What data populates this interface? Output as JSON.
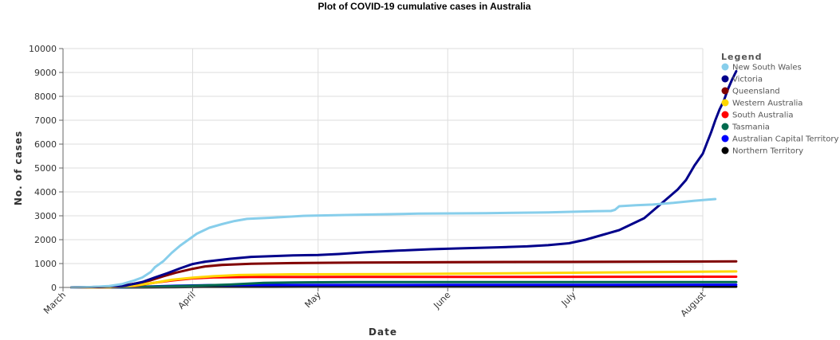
{
  "chart_data": {
    "type": "line",
    "title": "Plot of COVID-19 cumulative cases in Australia",
    "xlabel": "Date",
    "ylabel": "No. of cases",
    "xlim": [
      "2020-03-01",
      "2020-08-01"
    ],
    "ylim": [
      0,
      10000
    ],
    "x_ticks": [
      "March",
      "April",
      "May",
      "June",
      "July",
      "August"
    ],
    "x_tick_dates": [
      "2020-03-01",
      "2020-04-01",
      "2020-05-01",
      "2020-06-01",
      "2020-07-01",
      "2020-08-01"
    ],
    "y_ticks": [
      0,
      1000,
      2000,
      3000,
      4000,
      5000,
      6000,
      7000,
      8000,
      9000,
      10000
    ],
    "grid": true,
    "legend_title": "Legend",
    "legend_position": "right",
    "series": [
      {
        "name": "New South Wales",
        "color": "#87CEEB",
        "points": [
          [
            "2020-03-03",
            5
          ],
          [
            "2020-03-08",
            20
          ],
          [
            "2020-03-12",
            60
          ],
          [
            "2020-03-15",
            135
          ],
          [
            "2020-03-18",
            290
          ],
          [
            "2020-03-20",
            420
          ],
          [
            "2020-03-22",
            650
          ],
          [
            "2020-03-23",
            850
          ],
          [
            "2020-03-25",
            1100
          ],
          [
            "2020-03-27",
            1450
          ],
          [
            "2020-03-29",
            1750
          ],
          [
            "2020-03-31",
            2000
          ],
          [
            "2020-04-02",
            2250
          ],
          [
            "2020-04-05",
            2500
          ],
          [
            "2020-04-08",
            2650
          ],
          [
            "2020-04-11",
            2780
          ],
          [
            "2020-04-14",
            2870
          ],
          [
            "2020-04-20",
            2920
          ],
          [
            "2020-04-28",
            3000
          ],
          [
            "2020-05-10",
            3040
          ],
          [
            "2020-05-25",
            3090
          ],
          [
            "2020-06-10",
            3110
          ],
          [
            "2020-06-25",
            3140
          ],
          [
            "2020-07-06",
            3190
          ],
          [
            "2020-07-10",
            3200
          ],
          [
            "2020-07-11",
            3250
          ],
          [
            "2020-07-12",
            3400
          ],
          [
            "2020-07-16",
            3440
          ],
          [
            "2020-07-20",
            3470
          ],
          [
            "2020-07-25",
            3540
          ],
          [
            "2020-07-30",
            3630
          ],
          [
            "2020-08-04",
            3700
          ]
        ]
      },
      {
        "name": "Victoria",
        "color": "#00008B",
        "points": [
          [
            "2020-03-03",
            5
          ],
          [
            "2020-03-12",
            30
          ],
          [
            "2020-03-16",
            80
          ],
          [
            "2020-03-20",
            230
          ],
          [
            "2020-03-23",
            420
          ],
          [
            "2020-03-26",
            600
          ],
          [
            "2020-03-29",
            800
          ],
          [
            "2020-04-01",
            980
          ],
          [
            "2020-04-04",
            1080
          ],
          [
            "2020-04-10",
            1200
          ],
          [
            "2020-04-15",
            1280
          ],
          [
            "2020-04-25",
            1340
          ],
          [
            "2020-05-01",
            1360
          ],
          [
            "2020-05-06",
            1400
          ],
          [
            "2020-05-12",
            1470
          ],
          [
            "2020-05-20",
            1540
          ],
          [
            "2020-05-28",
            1600
          ],
          [
            "2020-06-05",
            1640
          ],
          [
            "2020-06-13",
            1680
          ],
          [
            "2020-06-20",
            1720
          ],
          [
            "2020-06-25",
            1770
          ],
          [
            "2020-06-30",
            1850
          ],
          [
            "2020-07-04",
            2000
          ],
          [
            "2020-07-08",
            2200
          ],
          [
            "2020-07-12",
            2400
          ],
          [
            "2020-07-15",
            2650
          ],
          [
            "2020-07-18",
            2900
          ],
          [
            "2020-07-20",
            3200
          ],
          [
            "2020-07-22",
            3500
          ],
          [
            "2020-07-24",
            3800
          ],
          [
            "2020-07-26",
            4100
          ],
          [
            "2020-07-28",
            4500
          ],
          [
            "2020-07-30",
            5100
          ],
          [
            "2020-08-01",
            5600
          ],
          [
            "2020-08-02",
            6050
          ],
          [
            "2020-08-03",
            6500
          ],
          [
            "2020-08-04",
            7000
          ],
          [
            "2020-08-05",
            7450
          ],
          [
            "2020-08-06",
            7800
          ],
          [
            "2020-08-07",
            8300
          ],
          [
            "2020-08-08",
            8700
          ],
          [
            "2020-08-09",
            9050
          ]
        ]
      },
      {
        "name": "Queensland",
        "color": "#800000",
        "points": [
          [
            "2020-03-03",
            5
          ],
          [
            "2020-03-10",
            20
          ],
          [
            "2020-03-15",
            70
          ],
          [
            "2020-03-19",
            180
          ],
          [
            "2020-03-22",
            300
          ],
          [
            "2020-03-25",
            470
          ],
          [
            "2020-03-28",
            620
          ],
          [
            "2020-04-01",
            780
          ],
          [
            "2020-04-04",
            880
          ],
          [
            "2020-04-08",
            940
          ],
          [
            "2020-04-15",
            990
          ],
          [
            "2020-04-25",
            1020
          ],
          [
            "2020-05-10",
            1040
          ],
          [
            "2020-06-01",
            1060
          ],
          [
            "2020-07-01",
            1070
          ],
          [
            "2020-08-09",
            1090
          ]
        ]
      },
      {
        "name": "Western Australia",
        "color": "#FFD700",
        "points": [
          [
            "2020-03-03",
            0
          ],
          [
            "2020-03-12",
            10
          ],
          [
            "2020-03-18",
            80
          ],
          [
            "2020-03-23",
            200
          ],
          [
            "2020-03-27",
            320
          ],
          [
            "2020-04-01",
            410
          ],
          [
            "2020-04-06",
            470
          ],
          [
            "2020-04-12",
            520
          ],
          [
            "2020-04-25",
            550
          ],
          [
            "2020-05-20",
            560
          ],
          [
            "2020-06-15",
            590
          ],
          [
            "2020-07-10",
            630
          ],
          [
            "2020-08-09",
            670
          ]
        ]
      },
      {
        "name": "South Australia",
        "color": "#FF0000",
        "points": [
          [
            "2020-03-03",
            0
          ],
          [
            "2020-03-12",
            10
          ],
          [
            "2020-03-18",
            60
          ],
          [
            "2020-03-23",
            200
          ],
          [
            "2020-03-27",
            290
          ],
          [
            "2020-04-01",
            380
          ],
          [
            "2020-04-06",
            420
          ],
          [
            "2020-04-15",
            435
          ],
          [
            "2020-05-10",
            440
          ],
          [
            "2020-06-20",
            440
          ],
          [
            "2020-08-09",
            450
          ]
        ]
      },
      {
        "name": "Tasmania",
        "color": "#006A4E",
        "points": [
          [
            "2020-03-03",
            0
          ],
          [
            "2020-03-15",
            10
          ],
          [
            "2020-03-25",
            40
          ],
          [
            "2020-04-01",
            70
          ],
          [
            "2020-04-10",
            120
          ],
          [
            "2020-04-18",
            190
          ],
          [
            "2020-04-25",
            210
          ],
          [
            "2020-05-10",
            226
          ],
          [
            "2020-06-15",
            228
          ],
          [
            "2020-08-09",
            228
          ]
        ]
      },
      {
        "name": "Australian Capital Territory",
        "color": "#0000FF",
        "points": [
          [
            "2020-03-03",
            0
          ],
          [
            "2020-03-15",
            5
          ],
          [
            "2020-03-22",
            40
          ],
          [
            "2020-03-28",
            70
          ],
          [
            "2020-04-05",
            95
          ],
          [
            "2020-04-20",
            103
          ],
          [
            "2020-06-01",
            107
          ],
          [
            "2020-07-10",
            110
          ],
          [
            "2020-08-09",
            113
          ]
        ]
      },
      {
        "name": "Northern Territory",
        "color": "#000000",
        "points": [
          [
            "2020-03-03",
            0
          ],
          [
            "2020-03-20",
            5
          ],
          [
            "2020-03-28",
            15
          ],
          [
            "2020-04-05",
            27
          ],
          [
            "2020-04-20",
            28
          ],
          [
            "2020-06-01",
            29
          ],
          [
            "2020-07-15",
            31
          ],
          [
            "2020-08-09",
            32
          ]
        ]
      }
    ]
  }
}
